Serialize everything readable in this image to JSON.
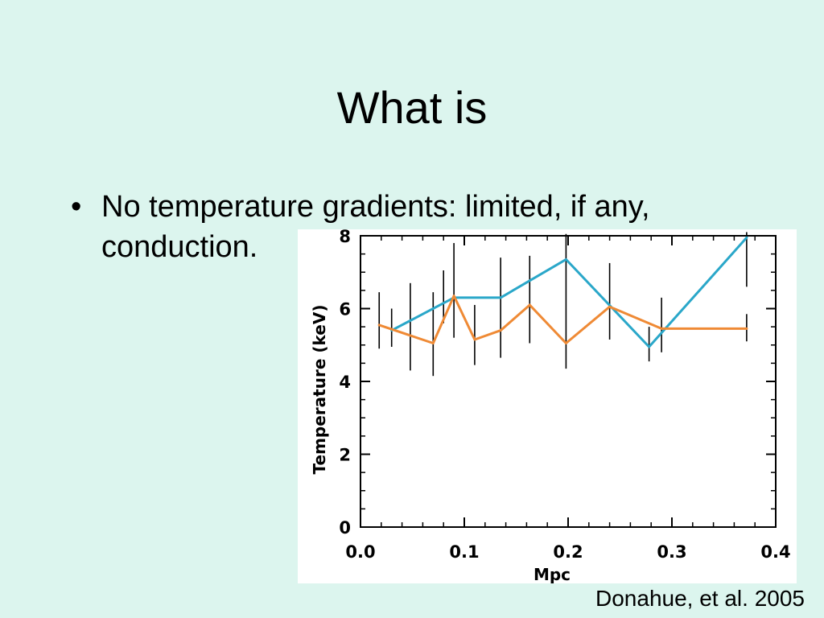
{
  "slide": {
    "title": "What is",
    "bullet_symbol": "•",
    "bullet_text": "No temperature gradients: limited, if any, conduction.",
    "credit": "Donahue, et al. 2005"
  },
  "colors": {
    "background": "#dcf5ee",
    "series_blue": "#2aa7c9",
    "series_orange": "#ef8a35",
    "error_bars": "#000000"
  },
  "chart_data": {
    "type": "line",
    "title": "",
    "xlabel": "Mpc",
    "ylabel": "Temperature (keV)",
    "xlim": [
      0.0,
      0.4
    ],
    "ylim": [
      0,
      8
    ],
    "x_ticks": [
      0.0,
      0.1,
      0.2,
      0.3,
      0.4
    ],
    "x_tick_labels": [
      "0.0",
      "0.1",
      "0.2",
      "0.3",
      "0.4"
    ],
    "y_ticks": [
      0,
      2,
      4,
      6,
      8
    ],
    "y_tick_labels": [
      "0",
      "2",
      "4",
      "6",
      "8"
    ],
    "grid": false,
    "legend": "none",
    "series": [
      {
        "color": "#2aa7c9",
        "x": [
          0.03,
          0.09,
          0.135,
          0.198,
          0.278,
          0.372
        ],
        "y": [
          5.4,
          6.3,
          6.3,
          7.35,
          4.95,
          7.95
        ]
      },
      {
        "color": "#ef8a35",
        "x": [
          0.018,
          0.07,
          0.09,
          0.11,
          0.135,
          0.163,
          0.198,
          0.24,
          0.29,
          0.372
        ],
        "y": [
          5.55,
          5.05,
          6.35,
          5.15,
          5.4,
          6.1,
          5.05,
          6.05,
          5.45,
          5.45
        ]
      }
    ],
    "error_bars": [
      {
        "x": 0.018,
        "low": 4.9,
        "high": 6.45
      },
      {
        "x": 0.03,
        "low": 4.95,
        "high": 6.0
      },
      {
        "x": 0.048,
        "low": 4.3,
        "high": 6.7
      },
      {
        "x": 0.07,
        "low": 4.15,
        "high": 6.45
      },
      {
        "x": 0.08,
        "low": 5.6,
        "high": 7.05
      },
      {
        "x": 0.09,
        "low": 5.2,
        "high": 7.8
      },
      {
        "x": 0.11,
        "low": 4.45,
        "high": 6.1
      },
      {
        "x": 0.135,
        "low": 4.65,
        "high": 7.4
      },
      {
        "x": 0.163,
        "low": 5.05,
        "high": 7.45
      },
      {
        "x": 0.198,
        "low": 4.35,
        "high": 8.05
      },
      {
        "x": 0.24,
        "low": 5.15,
        "high": 7.25
      },
      {
        "x": 0.278,
        "low": 4.55,
        "high": 5.5
      },
      {
        "x": 0.29,
        "low": 4.8,
        "high": 6.3
      },
      {
        "x": 0.372,
        "low": 5.1,
        "high": 5.85
      },
      {
        "x": 0.372,
        "low": 6.6,
        "high": 8.1
      }
    ]
  }
}
